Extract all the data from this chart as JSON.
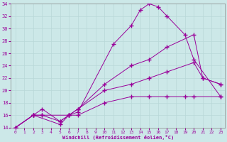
{
  "title": "Windchill (Refroidissement éolien,°C)",
  "bg_color": "#cce8e8",
  "line_color": "#990099",
  "grid_color": "#b8d8d8",
  "xlim": [
    -0.5,
    23.5
  ],
  "ylim": [
    14,
    34
  ],
  "xticks": [
    0,
    1,
    2,
    3,
    4,
    5,
    6,
    7,
    8,
    9,
    10,
    11,
    12,
    13,
    14,
    15,
    16,
    17,
    18,
    19,
    20,
    21,
    22,
    23
  ],
  "yticks": [
    14,
    16,
    18,
    20,
    22,
    24,
    26,
    28,
    30,
    32,
    34
  ],
  "series": [
    {
      "x": [
        0,
        2,
        3,
        6,
        7,
        10,
        13,
        15,
        17,
        19,
        20,
        23
      ],
      "y": [
        14,
        16,
        16,
        16,
        16,
        18,
        19,
        19,
        19,
        19,
        19,
        19
      ]
    },
    {
      "x": [
        0,
        2,
        3,
        5,
        6,
        7,
        10,
        13,
        15,
        17,
        20,
        21,
        23
      ],
      "y": [
        14,
        16,
        16,
        15,
        16,
        17,
        20,
        21,
        22,
        23,
        24.5,
        22,
        21
      ]
    },
    {
      "x": [
        0,
        2,
        3,
        5,
        6,
        7,
        10,
        13,
        15,
        17,
        20,
        21,
        23
      ],
      "y": [
        14,
        16,
        17,
        15,
        16,
        17,
        21,
        24,
        25,
        27,
        29,
        22,
        21
      ]
    },
    {
      "x": [
        0,
        2,
        5,
        6,
        7,
        11,
        13,
        14,
        15,
        16,
        17,
        19,
        20,
        23
      ],
      "y": [
        14,
        16,
        14.5,
        16,
        16.5,
        27.5,
        30.5,
        33,
        34,
        33.5,
        32,
        29,
        25,
        19
      ]
    }
  ]
}
